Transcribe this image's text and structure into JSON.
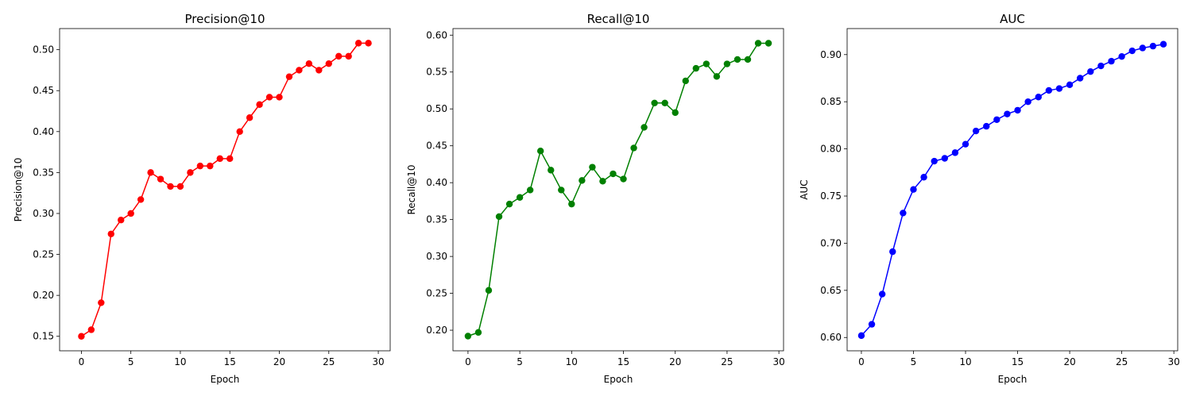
{
  "chart_data": [
    {
      "type": "line",
      "title": "Precision@10",
      "xlabel": "Epoch",
      "ylabel": "Precision@10",
      "color": "#ff0000",
      "marker": "circle",
      "x": [
        0,
        1,
        2,
        3,
        4,
        5,
        6,
        7,
        8,
        9,
        10,
        11,
        12,
        13,
        14,
        15,
        16,
        17,
        18,
        19,
        20,
        21,
        22,
        23,
        24,
        25,
        26,
        27,
        28,
        29
      ],
      "values": [
        0.15,
        0.158,
        0.191,
        0.275,
        0.292,
        0.3,
        0.317,
        0.35,
        0.342,
        0.333,
        0.333,
        0.35,
        0.358,
        0.358,
        0.367,
        0.367,
        0.4,
        0.417,
        0.433,
        0.442,
        0.442,
        0.467,
        0.475,
        0.483,
        0.475,
        0.483,
        0.492,
        0.492,
        0.508,
        0.508
      ],
      "xlim": [
        -2.2,
        31.2
      ],
      "ylim": [
        0.1323,
        0.5258
      ],
      "xticks": [
        0,
        5,
        10,
        15,
        20,
        25,
        30
      ],
      "xtick_labels": [
        "0",
        "5",
        "10",
        "15",
        "20",
        "25",
        "30"
      ],
      "yticks": [
        0.15,
        0.2,
        0.25,
        0.3,
        0.35,
        0.4,
        0.45,
        0.5
      ],
      "ytick_labels": [
        "0.15",
        "0.20",
        "0.25",
        "0.30",
        "0.35",
        "0.40",
        "0.45",
        "0.50"
      ],
      "grid": false
    },
    {
      "type": "line",
      "title": "Recall@10",
      "xlabel": "Epoch",
      "ylabel": "Recall@10",
      "color": "#008000",
      "marker": "circle",
      "x": [
        0,
        1,
        2,
        3,
        4,
        5,
        6,
        7,
        8,
        9,
        10,
        11,
        12,
        13,
        14,
        15,
        16,
        17,
        18,
        19,
        20,
        21,
        22,
        23,
        24,
        25,
        26,
        27,
        28,
        29
      ],
      "values": [
        0.192,
        0.197,
        0.254,
        0.354,
        0.371,
        0.38,
        0.39,
        0.443,
        0.417,
        0.39,
        0.371,
        0.403,
        0.421,
        0.402,
        0.412,
        0.405,
        0.447,
        0.475,
        0.508,
        0.508,
        0.495,
        0.538,
        0.555,
        0.561,
        0.544,
        0.561,
        0.567,
        0.567,
        0.589,
        0.589
      ],
      "xlim": [
        -1.45,
        30.45
      ],
      "ylim": [
        0.1721,
        0.6089
      ],
      "xticks": [
        0,
        5,
        10,
        15,
        20,
        25,
        30
      ],
      "xtick_labels": [
        "0",
        "5",
        "10",
        "15",
        "20",
        "25",
        "30"
      ],
      "yticks": [
        0.2,
        0.25,
        0.3,
        0.35,
        0.4,
        0.45,
        0.5,
        0.55,
        0.6
      ],
      "ytick_labels": [
        "0.20",
        "0.25",
        "0.30",
        "0.35",
        "0.40",
        "0.45",
        "0.50",
        "0.55",
        "0.60"
      ],
      "grid": false
    },
    {
      "type": "line",
      "title": "AUC",
      "xlabel": "Epoch",
      "ylabel": "AUC",
      "color": "#0000ff",
      "marker": "circle",
      "x": [
        0,
        1,
        2,
        3,
        4,
        5,
        6,
        7,
        8,
        9,
        10,
        11,
        12,
        13,
        14,
        15,
        16,
        17,
        18,
        19,
        20,
        21,
        22,
        23,
        24,
        25,
        26,
        27,
        28,
        29
      ],
      "values": [
        0.602,
        0.614,
        0.646,
        0.691,
        0.732,
        0.757,
        0.77,
        0.787,
        0.79,
        0.796,
        0.805,
        0.819,
        0.824,
        0.831,
        0.837,
        0.841,
        0.85,
        0.855,
        0.862,
        0.864,
        0.868,
        0.875,
        0.882,
        0.888,
        0.893,
        0.898,
        0.904,
        0.907,
        0.909,
        0.911
      ],
      "xlim": [
        -1.37,
        30.37
      ],
      "ylim": [
        0.5859,
        0.9276
      ],
      "xticks": [
        0,
        5,
        10,
        15,
        20,
        25,
        30
      ],
      "xtick_labels": [
        "0",
        "5",
        "10",
        "15",
        "20",
        "25",
        "30"
      ],
      "yticks": [
        0.6,
        0.65,
        0.7,
        0.75,
        0.8,
        0.85,
        0.9
      ],
      "ytick_labels": [
        "0.60",
        "0.65",
        "0.70",
        "0.75",
        "0.80",
        "0.85",
        "0.90"
      ],
      "grid": false
    }
  ]
}
